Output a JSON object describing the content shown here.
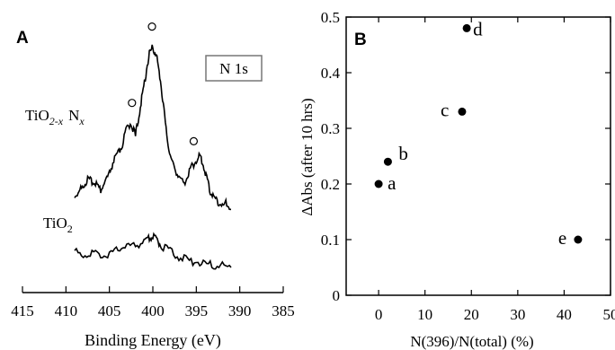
{
  "chart_data": [
    {
      "type": "line",
      "panel_label": "A",
      "xlabel": "Binding Energy (eV)",
      "xlim": [
        415,
        385
      ],
      "x_ticks": [
        "415",
        "410",
        "405",
        "400",
        "395",
        "390",
        "385"
      ],
      "y_ticks_shown": false,
      "annotation_box": "N 1s",
      "series": [
        {
          "label_main": "TiO",
          "label_sub": "2-x",
          "label_n": "N",
          "label_nsub": "x",
          "points": [
            [
              409,
              0.4
            ],
            [
              408.5,
              0.42
            ],
            [
              408,
              0.45
            ],
            [
              407.5,
              0.48
            ],
            [
              407,
              0.47
            ],
            [
              406.5,
              0.46
            ],
            [
              406,
              0.43
            ],
            [
              405.5,
              0.47
            ],
            [
              405,
              0.51
            ],
            [
              404.5,
              0.58
            ],
            [
              404,
              0.61
            ],
            [
              403.5,
              0.66
            ],
            [
              403,
              0.74
            ],
            [
              402.5,
              0.77
            ],
            [
              402,
              0.7
            ],
            [
              401.6,
              0.81
            ],
            [
              401.2,
              0.91
            ],
            [
              400.8,
              1.02
            ],
            [
              400.4,
              1.12
            ],
            [
              400.0,
              1.15
            ],
            [
              399.6,
              1.11
            ],
            [
              399.2,
              1.01
            ],
            [
              398.8,
              0.86
            ],
            [
              398.4,
              0.71
            ],
            [
              398,
              0.6
            ],
            [
              397.5,
              0.54
            ],
            [
              397,
              0.5
            ],
            [
              396.5,
              0.46
            ],
            [
              396,
              0.5
            ],
            [
              395.5,
              0.55
            ],
            [
              395,
              0.58
            ],
            [
              394.6,
              0.6
            ],
            [
              394.2,
              0.56
            ],
            [
              393.8,
              0.49
            ],
            [
              393.4,
              0.42
            ],
            [
              393,
              0.39
            ],
            [
              392.5,
              0.37
            ],
            [
              392,
              0.35
            ],
            [
              391.5,
              0.36
            ],
            [
              391,
              0.33
            ]
          ]
        },
        {
          "label_main": "TiO",
          "label_sub": "2",
          "points": [
            [
              409,
              0.13
            ],
            [
              408,
              0.11
            ],
            [
              407,
              0.12
            ],
            [
              406,
              0.1
            ],
            [
              405,
              0.12
            ],
            [
              404,
              0.14
            ],
            [
              403,
              0.16
            ],
            [
              402,
              0.16
            ],
            [
              401,
              0.18
            ],
            [
              400.5,
              0.2
            ],
            [
              400,
              0.21
            ],
            [
              399.5,
              0.19
            ],
            [
              399,
              0.16
            ],
            [
              398,
              0.13
            ],
            [
              397,
              0.1
            ],
            [
              396,
              0.08
            ],
            [
              395,
              0.07
            ],
            [
              394,
              0.06
            ],
            [
              393,
              0.05
            ],
            [
              392,
              0.05
            ],
            [
              391,
              0.04
            ]
          ]
        }
      ],
      "markers_x": [
        402.4,
        400.1,
        395.3
      ]
    },
    {
      "type": "scatter",
      "panel_label": "B",
      "xlabel": "N(396)/N(total) (%)",
      "ylabel": "ΔAbs (after 10 hrs)",
      "xlim": [
        -7,
        50
      ],
      "ylim": [
        0,
        0.5
      ],
      "x_ticks": [
        0,
        10,
        20,
        30,
        40,
        50
      ],
      "y_ticks": [
        0,
        0.1,
        0.2,
        0.3,
        0.4,
        0.5
      ],
      "y_tick_labels": [
        "0",
        "0.1",
        "0.2",
        "0.3",
        "0.4",
        "0.5"
      ],
      "points": [
        {
          "x": 0,
          "y": 0.2,
          "label": "a"
        },
        {
          "x": 2,
          "y": 0.24,
          "label": "b"
        },
        {
          "x": 18,
          "y": 0.33,
          "label": "c"
        },
        {
          "x": 19,
          "y": 0.48,
          "label": "d"
        },
        {
          "x": 43,
          "y": 0.1,
          "label": "e"
        }
      ]
    }
  ]
}
